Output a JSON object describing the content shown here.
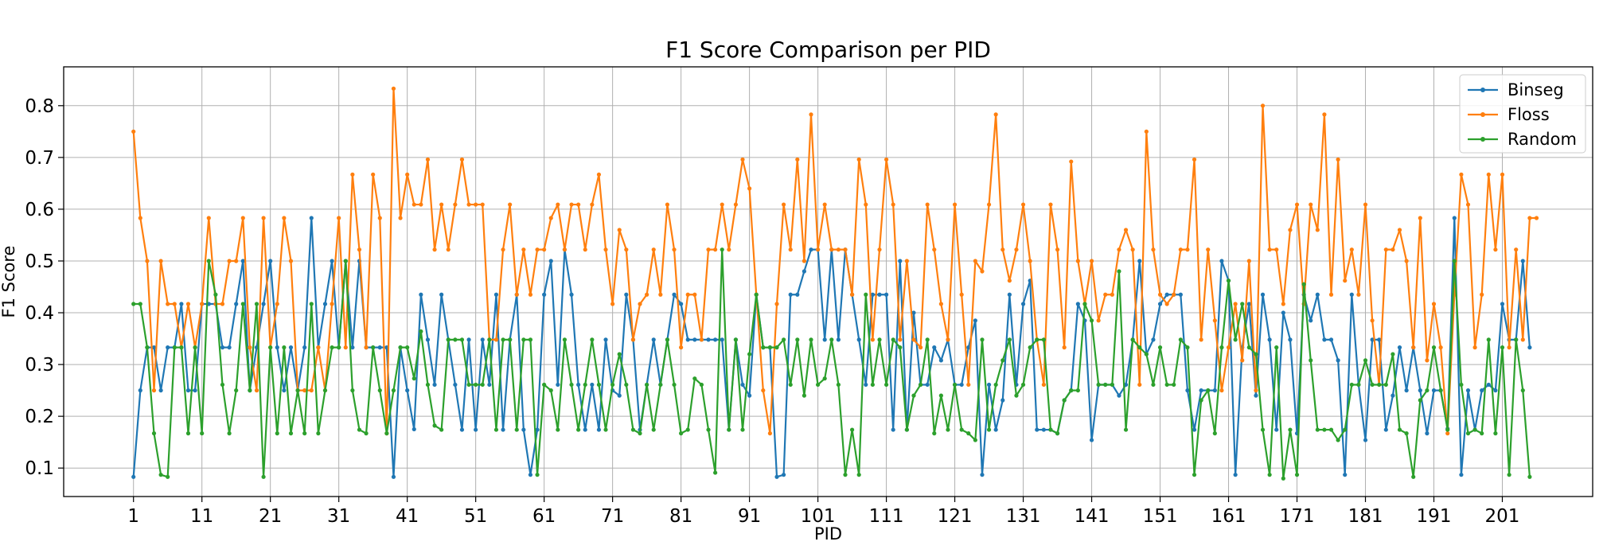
{
  "chart_data": {
    "type": "line",
    "title": "F1 Score Comparison per PID",
    "xlabel": "PID",
    "ylabel": "F1 Score",
    "xlim": [
      -9.2,
      214.2
    ],
    "ylim": [
      0.045,
      0.875
    ],
    "x_ticks": [
      1,
      11,
      21,
      31,
      41,
      51,
      61,
      71,
      81,
      91,
      101,
      111,
      121,
      131,
      141,
      151,
      161,
      171,
      181,
      191,
      201
    ],
    "y_ticks": [
      0.1,
      0.2,
      0.3,
      0.4,
      0.5,
      0.6,
      0.7,
      0.8
    ],
    "grid": true,
    "legend_position": "top-right",
    "series": [
      {
        "name": "Binseg",
        "color": "#1f77b4",
        "values": [
          0.083,
          0.25,
          0.333,
          0.333,
          0.25,
          0.333,
          0.333,
          0.417,
          0.25,
          0.25,
          0.417,
          0.417,
          0.417,
          0.333,
          0.333,
          0.417,
          0.5,
          0.25,
          0.333,
          0.417,
          0.5,
          0.333,
          0.25,
          0.333,
          0.25,
          0.333,
          0.583,
          0.333,
          0.417,
          0.5,
          0.333,
          0.5,
          0.333,
          0.5,
          0.333,
          0.333,
          0.333,
          0.333,
          0.083,
          0.333,
          0.25,
          0.175,
          0.435,
          0.348,
          0.261,
          0.435,
          0.348,
          0.261,
          0.174,
          0.348,
          0.174,
          0.348,
          0.261,
          0.435,
          0.174,
          0.348,
          0.435,
          0.174,
          0.087,
          0.174,
          0.435,
          0.5,
          0.261,
          0.522,
          0.435,
          0.261,
          0.174,
          0.261,
          0.174,
          0.348,
          0.25,
          0.24,
          0.435,
          0.348,
          0.174,
          0.261,
          0.348,
          0.261,
          0.348,
          0.435,
          0.417,
          0.348,
          0.348,
          0.348,
          0.348,
          0.348,
          0.348,
          0.174,
          0.348,
          0.261,
          0.24,
          0.435,
          0.333,
          0.333,
          0.083,
          0.087,
          0.435,
          0.435,
          0.48,
          0.522,
          0.522,
          0.348,
          0.522,
          0.348,
          0.522,
          0.435,
          0.348,
          0.261,
          0.435,
          0.435,
          0.435,
          0.174,
          0.5,
          0.174,
          0.4,
          0.261,
          0.261,
          0.333,
          0.308,
          0.348,
          0.261,
          0.261,
          0.333,
          0.385,
          0.087,
          0.261,
          0.174,
          0.231,
          0.435,
          0.261,
          0.417,
          0.462,
          0.174,
          0.174,
          0.174,
          0.167,
          0.231,
          0.25,
          0.417,
          0.385,
          0.154,
          0.261,
          0.261,
          0.261,
          0.24,
          0.261,
          0.348,
          0.5,
          0.32,
          0.348,
          0.417,
          0.435,
          0.435,
          0.435,
          0.25,
          0.174,
          0.25,
          0.25,
          0.25,
          0.5,
          0.462,
          0.087,
          0.333,
          0.417,
          0.24,
          0.435,
          0.348,
          0.174,
          0.4,
          0.348,
          0.167,
          0.435,
          0.385,
          0.435,
          0.348,
          0.348,
          0.308,
          0.087,
          0.435,
          0.261,
          0.154,
          0.348,
          0.348,
          0.174,
          0.24,
          0.333,
          0.25,
          0.333,
          0.25,
          0.167,
          0.25,
          0.25,
          0.176,
          0.583,
          0.087,
          0.25,
          0.174,
          0.25,
          0.261,
          0.25,
          0.417,
          0.348,
          0.348,
          0.5,
          0.333
        ]
      },
      {
        "name": "Floss",
        "color": "#ff7f0e",
        "values": [
          0.75,
          0.583,
          0.5,
          0.25,
          0.5,
          0.417,
          0.417,
          0.333,
          0.417,
          0.333,
          0.417,
          0.583,
          0.417,
          0.417,
          0.5,
          0.5,
          0.583,
          0.333,
          0.25,
          0.583,
          0.333,
          0.417,
          0.583,
          0.5,
          0.25,
          0.25,
          0.25,
          0.333,
          0.25,
          0.417,
          0.583,
          0.333,
          0.667,
          0.522,
          0.333,
          0.667,
          0.583,
          0.167,
          0.833,
          0.583,
          0.667,
          0.609,
          0.609,
          0.696,
          0.522,
          0.609,
          0.522,
          0.609,
          0.696,
          0.609,
          0.609,
          0.609,
          0.348,
          0.348,
          0.522,
          0.609,
          0.435,
          0.522,
          0.435,
          0.522,
          0.522,
          0.583,
          0.609,
          0.522,
          0.609,
          0.609,
          0.522,
          0.609,
          0.667,
          0.522,
          0.417,
          0.56,
          0.522,
          0.348,
          0.417,
          0.435,
          0.522,
          0.435,
          0.609,
          0.522,
          0.333,
          0.435,
          0.435,
          0.348,
          0.522,
          0.522,
          0.609,
          0.522,
          0.609,
          0.696,
          0.64,
          0.435,
          0.25,
          0.167,
          0.417,
          0.609,
          0.522,
          0.696,
          0.5,
          0.783,
          0.522,
          0.609,
          0.522,
          0.522,
          0.522,
          0.435,
          0.696,
          0.609,
          0.348,
          0.522,
          0.696,
          0.609,
          0.348,
          0.5,
          0.348,
          0.333,
          0.609,
          0.522,
          0.417,
          0.348,
          0.609,
          0.435,
          0.261,
          0.5,
          0.48,
          0.609,
          0.783,
          0.522,
          0.462,
          0.522,
          0.609,
          0.5,
          0.348,
          0.261,
          0.609,
          0.522,
          0.333,
          0.692,
          0.5,
          0.417,
          0.5,
          0.385,
          0.435,
          0.435,
          0.522,
          0.56,
          0.522,
          0.261,
          0.75,
          0.522,
          0.435,
          0.417,
          0.435,
          0.522,
          0.522,
          0.696,
          0.348,
          0.522,
          0.385,
          0.25,
          0.333,
          0.417,
          0.308,
          0.5,
          0.25,
          0.8,
          0.522,
          0.522,
          0.417,
          0.56,
          0.609,
          0.417,
          0.609,
          0.56,
          0.783,
          0.435,
          0.696,
          0.462,
          0.522,
          0.435,
          0.609,
          0.385,
          0.261,
          0.522,
          0.522,
          0.56,
          0.5,
          0.333,
          0.583,
          0.308,
          0.417,
          0.333,
          0.167,
          0.435,
          0.667,
          0.609,
          0.333,
          0.435,
          0.667,
          0.522,
          0.667,
          0.333,
          0.522,
          0.348,
          0.583,
          0.583
        ]
      },
      {
        "name": "Random",
        "color": "#2ca02c",
        "values": [
          0.417,
          0.417,
          0.333,
          0.167,
          0.087,
          0.083,
          0.333,
          0.333,
          0.167,
          0.333,
          0.167,
          0.5,
          0.435,
          0.261,
          0.167,
          0.25,
          0.417,
          0.25,
          0.417,
          0.083,
          0.333,
          0.167,
          0.333,
          0.167,
          0.25,
          0.167,
          0.417,
          0.167,
          0.25,
          0.333,
          0.333,
          0.5,
          0.25,
          0.174,
          0.167,
          0.333,
          0.25,
          0.167,
          0.25,
          0.333,
          0.333,
          0.273,
          0.364,
          0.261,
          0.182,
          0.174,
          0.348,
          0.348,
          0.348,
          0.261,
          0.261,
          0.261,
          0.348,
          0.174,
          0.348,
          0.348,
          0.174,
          0.348,
          0.348,
          0.087,
          0.261,
          0.25,
          0.174,
          0.348,
          0.261,
          0.174,
          0.261,
          0.348,
          0.261,
          0.174,
          0.261,
          0.32,
          0.261,
          0.174,
          0.167,
          0.261,
          0.174,
          0.261,
          0.348,
          0.261,
          0.167,
          0.174,
          0.273,
          0.261,
          0.174,
          0.091,
          0.522,
          0.174,
          0.348,
          0.174,
          0.32,
          0.435,
          0.333,
          0.333,
          0.333,
          0.348,
          0.261,
          0.348,
          0.24,
          0.348,
          0.261,
          0.273,
          0.348,
          0.261,
          0.087,
          0.174,
          0.087,
          0.435,
          0.261,
          0.348,
          0.261,
          0.348,
          0.333,
          0.174,
          0.24,
          0.261,
          0.348,
          0.167,
          0.24,
          0.174,
          0.261,
          0.174,
          0.167,
          0.154,
          0.348,
          0.174,
          0.261,
          0.308,
          0.348,
          0.24,
          0.261,
          0.333,
          0.348,
          0.348,
          0.174,
          0.167,
          0.231,
          0.25,
          0.25,
          0.417,
          0.385,
          0.261,
          0.261,
          0.261,
          0.48,
          0.174,
          0.348,
          0.333,
          0.32,
          0.261,
          0.333,
          0.261,
          0.261,
          0.348,
          0.333,
          0.087,
          0.231,
          0.25,
          0.167,
          0.333,
          0.462,
          0.348,
          0.417,
          0.333,
          0.32,
          0.174,
          0.087,
          0.333,
          0.08,
          0.174,
          0.087,
          0.455,
          0.308,
          0.174,
          0.174,
          0.174,
          0.154,
          0.174,
          0.261,
          0.261,
          0.308,
          0.261,
          0.261,
          0.261,
          0.32,
          0.174,
          0.167,
          0.083,
          0.231,
          0.25,
          0.333,
          0.25,
          0.174,
          0.5,
          0.261,
          0.167,
          0.174,
          0.167,
          0.348,
          0.167,
          0.333,
          0.087,
          0.348,
          0.25,
          0.083
        ]
      }
    ]
  }
}
